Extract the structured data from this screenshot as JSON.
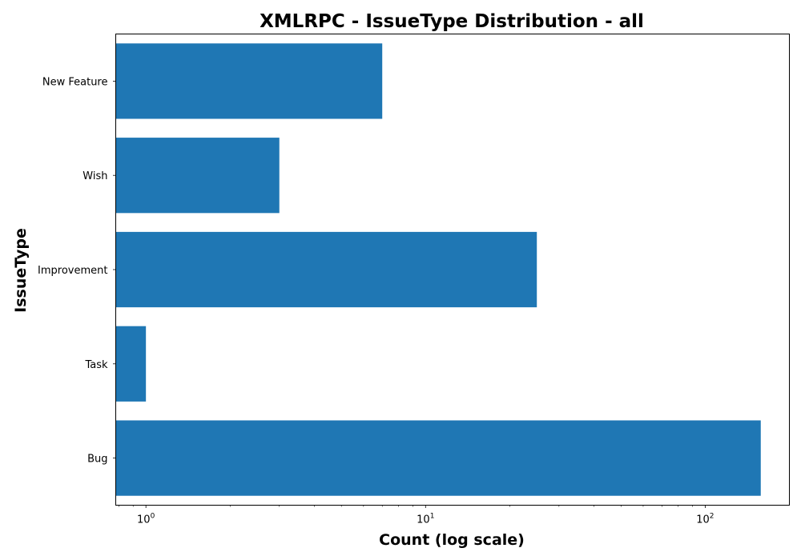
{
  "chart_data": {
    "type": "bar",
    "orientation": "horizontal",
    "title": "XMLRPC - IssueType Distribution - all",
    "xlabel": "Count (log scale)",
    "ylabel": "IssueType",
    "xscale": "log",
    "xlim": [
      0.78,
      200
    ],
    "categories": [
      "Bug",
      "Task",
      "Improvement",
      "Wish",
      "New Feature"
    ],
    "values": [
      158,
      1,
      25,
      3,
      7
    ],
    "bar_color": "#1f77b4",
    "x_ticks": [
      {
        "value": 1,
        "base": "10",
        "exp": "0"
      },
      {
        "value": 10,
        "base": "10",
        "exp": "1"
      },
      {
        "value": 100,
        "base": "10",
        "exp": "2"
      }
    ],
    "grid": false,
    "legend": "none"
  }
}
